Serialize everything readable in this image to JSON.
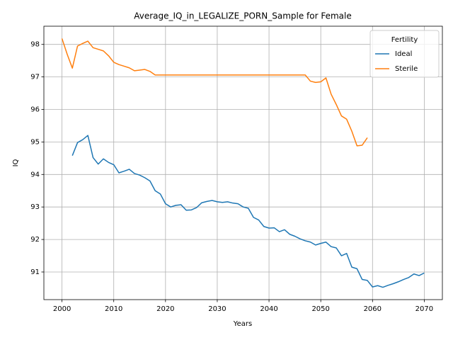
{
  "chart_data": {
    "type": "line",
    "title": "Average_IQ_in_LEGALIZE_PORN_Sample for Female",
    "xlabel": "Years",
    "ylabel": "IQ",
    "legend_title": "Fertility",
    "legend_loc": "upper right",
    "grid": true,
    "x": [
      2000,
      2001,
      2002,
      2003,
      2004,
      2005,
      2006,
      2007,
      2008,
      2009,
      2010,
      2011,
      2012,
      2013,
      2014,
      2015,
      2016,
      2017,
      2018,
      2019,
      2020,
      2021,
      2022,
      2023,
      2024,
      2025,
      2026,
      2027,
      2028,
      2029,
      2030,
      2031,
      2032,
      2033,
      2034,
      2035,
      2036,
      2037,
      2038,
      2039,
      2040,
      2041,
      2042,
      2043,
      2044,
      2045,
      2046,
      2047,
      2048,
      2049,
      2050,
      2051,
      2052,
      2053,
      2054,
      2055,
      2056,
      2057,
      2058,
      2059,
      2060,
      2061,
      2062,
      2063,
      2064,
      2065,
      2066,
      2067,
      2068,
      2069,
      2070
    ],
    "series": [
      {
        "name": "Ideal",
        "color": "#1f77b4",
        "values": [
          null,
          null,
          94.58,
          94.98,
          95.07,
          95.2,
          94.52,
          94.32,
          94.48,
          94.37,
          94.3,
          94.05,
          94.1,
          94.16,
          94.03,
          93.98,
          93.9,
          93.8,
          93.5,
          93.4,
          93.1,
          93.0,
          93.05,
          93.07,
          92.9,
          92.91,
          92.98,
          93.13,
          93.17,
          93.2,
          93.16,
          93.14,
          93.16,
          93.12,
          93.1,
          93.0,
          92.96,
          92.68,
          92.6,
          92.4,
          92.35,
          92.36,
          92.24,
          92.3,
          92.16,
          92.1,
          92.02,
          91.96,
          91.92,
          91.83,
          91.88,
          91.92,
          91.78,
          91.74,
          91.5,
          91.57,
          91.15,
          91.1,
          90.77,
          90.74,
          90.54,
          90.58,
          90.53,
          90.59,
          90.64,
          90.7,
          90.77,
          90.83,
          90.94,
          90.89,
          90.97
        ]
      },
      {
        "name": "Sterile",
        "color": "#ff7f0e",
        "values": [
          98.18,
          97.7,
          97.27,
          97.95,
          98.03,
          98.1,
          97.9,
          97.85,
          97.8,
          97.65,
          97.45,
          97.38,
          97.33,
          97.28,
          97.19,
          97.21,
          97.23,
          97.17,
          97.06,
          97.06,
          97.06,
          97.06,
          97.06,
          97.06,
          97.06,
          97.06,
          97.06,
          97.06,
          97.06,
          97.06,
          97.06,
          97.06,
          97.06,
          97.06,
          97.06,
          97.06,
          97.06,
          97.06,
          97.06,
          97.06,
          97.06,
          97.06,
          97.06,
          97.06,
          97.06,
          97.06,
          97.06,
          97.06,
          96.87,
          96.83,
          96.85,
          96.97,
          96.47,
          96.15,
          95.8,
          95.7,
          95.33,
          94.88,
          94.9,
          95.13,
          null,
          null,
          null,
          null,
          null,
          null,
          null,
          null,
          null,
          null,
          null
        ]
      }
    ],
    "xlim": [
      1996.5,
      2073.5
    ],
    "xticks": [
      2000,
      2010,
      2020,
      2030,
      2040,
      2050,
      2060,
      2070
    ],
    "ylim": [
      90.15,
      98.56
    ],
    "yticks": [
      91,
      92,
      93,
      94,
      95,
      96,
      97,
      98
    ]
  }
}
